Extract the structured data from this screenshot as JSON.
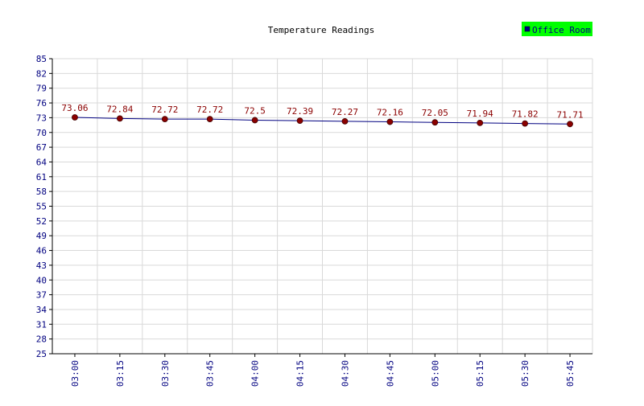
{
  "chart_data": {
    "type": "line",
    "title": "Temperature Readings",
    "xlabel": "",
    "ylabel": "",
    "categories": [
      "03:00",
      "03:15",
      "03:30",
      "03:45",
      "04:00",
      "04:15",
      "04:30",
      "04:45",
      "05:00",
      "05:15",
      "05:30",
      "05:45"
    ],
    "series": [
      {
        "name": "Office Room",
        "values": [
          73.06,
          72.84,
          72.72,
          72.72,
          72.5,
          72.39,
          72.27,
          72.16,
          72.05,
          71.94,
          71.82,
          71.71
        ],
        "labels": [
          "73.06",
          "72.84",
          "72.72",
          "72.72",
          "72.5",
          "72.39",
          "72.27",
          "72.16",
          "72.05",
          "71.94",
          "71.82",
          "71.71"
        ]
      }
    ],
    "ylim": [
      25,
      85
    ],
    "yticks": [
      25,
      28,
      31,
      34,
      37,
      40,
      43,
      46,
      49,
      52,
      55,
      58,
      61,
      64,
      67,
      70,
      73,
      76,
      79,
      82,
      85
    ],
    "grid": true,
    "legend_position": "top-right",
    "colors": {
      "line": "#000080",
      "marker_fill": "#8b0000",
      "marker_stroke": "#400000",
      "value_label": "#8b0000",
      "axis_text": "#000080",
      "grid": "#d9d9d9",
      "legend_bg": "#00ff00",
      "legend_marker": "#000080",
      "legend_text": "#000080",
      "title_text": "#000000",
      "axis_line": "#000000"
    }
  }
}
